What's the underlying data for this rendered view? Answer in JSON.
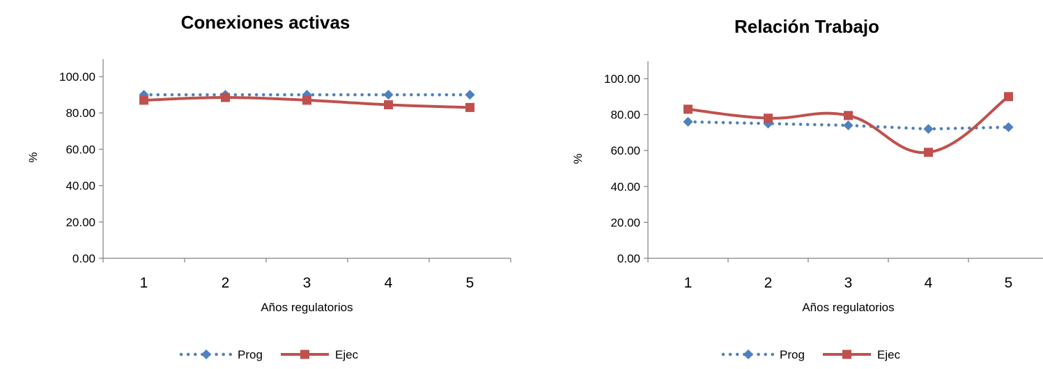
{
  "colors": {
    "prog": "#4f81bd",
    "ejec": "#c0504d",
    "axis": "#808080"
  },
  "chart_data": [
    {
      "type": "line",
      "title": "Conexiones activas",
      "xlabel": "Años regulatorios",
      "ylabel": "%",
      "categories": [
        "1",
        "2",
        "3",
        "4",
        "5"
      ],
      "ylim": [
        0,
        100
      ],
      "y_ticks": [
        "0.00",
        "20.00",
        "40.00",
        "60.00",
        "80.00",
        "100.00"
      ],
      "grid": false,
      "legend_position": "bottom",
      "series": [
        {
          "name": "Prog",
          "style": "dotted-diamond",
          "smooth": false,
          "values": [
            90,
            90,
            90,
            90,
            90
          ]
        },
        {
          "name": "Ejec",
          "style": "solid-square",
          "smooth": true,
          "values": [
            87,
            88.5,
            87,
            84.5,
            83
          ]
        }
      ]
    },
    {
      "type": "line",
      "title": "Relación Trabajo",
      "xlabel": "Años regulatorios",
      "ylabel": "%",
      "categories": [
        "1",
        "2",
        "3",
        "4",
        "5"
      ],
      "ylim": [
        0,
        100
      ],
      "y_ticks": [
        "0.00",
        "20.00",
        "40.00",
        "60.00",
        "80.00",
        "100.00"
      ],
      "grid": false,
      "legend_position": "bottom",
      "series": [
        {
          "name": "Prog",
          "style": "dotted-diamond",
          "smooth": false,
          "values": [
            76,
            75,
            74,
            72,
            73
          ]
        },
        {
          "name": "Ejec",
          "style": "solid-square",
          "smooth": true,
          "values": [
            83,
            78,
            79.5,
            59,
            90
          ]
        }
      ]
    }
  ]
}
